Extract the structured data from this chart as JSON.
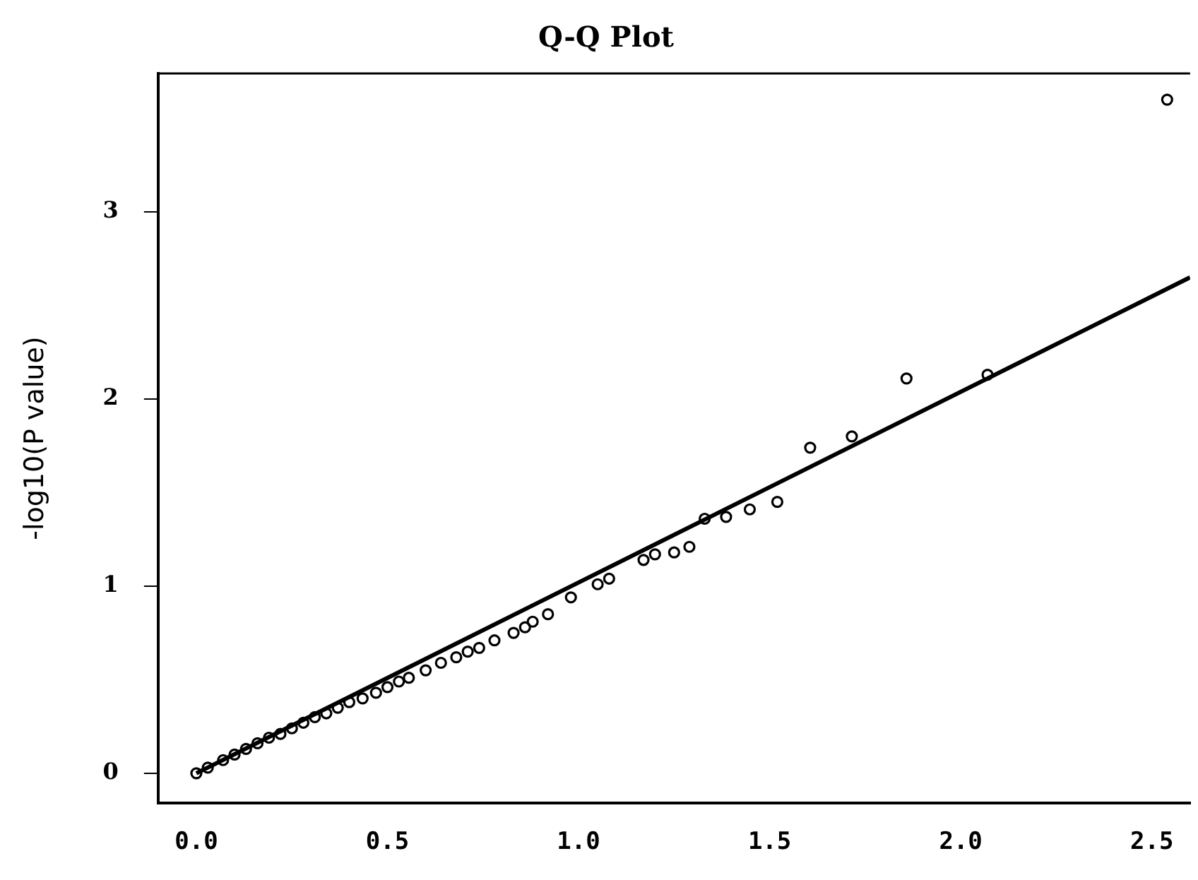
{
  "chart_data": {
    "type": "scatter",
    "title": "Q-Q Plot",
    "ylabel": "-log10(P value)",
    "xlim": [
      -0.1,
      2.6
    ],
    "xticks": [
      {
        "value": 0,
        "label": "0.0"
      },
      0.5,
      {
        "value": 1,
        "label": "1.0"
      },
      1.5,
      {
        "value": 2,
        "label": "2.0"
      },
      2.5
    ],
    "ylim": [
      -0.16,
      3.74
    ],
    "yticks": [
      0,
      1,
      2,
      3
    ],
    "grid": false,
    "legend": false,
    "series": [
      {
        "marker": "circle",
        "color": "#000000",
        "x": [
          0,
          0.03,
          0.07,
          0.1,
          0.13,
          0.16,
          0.19,
          0.22,
          0.25,
          0.28,
          0.31,
          0.34,
          0.37,
          0.4,
          0.435,
          0.47,
          0.5,
          0.53,
          0.556,
          0.6,
          0.64,
          0.68,
          0.71,
          0.74,
          0.78,
          0.83,
          0.86,
          0.88,
          0.92,
          0.98,
          1.05,
          1.08,
          1.17,
          1.2,
          1.25,
          1.29,
          1.33,
          1.386,
          1.448,
          1.52,
          1.606,
          1.715,
          1.858,
          2.07,
          2.54
        ],
        "values": [
          0,
          0.03,
          0.07,
          0.1,
          0.13,
          0.16,
          0.19,
          0.21,
          0.24,
          0.27,
          0.3,
          0.32,
          0.35,
          0.38,
          0.4,
          0.43,
          0.46,
          0.49,
          0.51,
          0.55,
          0.59,
          0.62,
          0.65,
          0.67,
          0.71,
          0.75,
          0.78,
          0.81,
          0.85,
          0.94,
          1.01,
          1.04,
          1.14,
          1.17,
          1.18,
          1.21,
          1.36,
          1.37,
          1.41,
          1.45,
          1.74,
          1.8,
          2.11,
          2.13,
          3.6
        ]
      },
      {
        "type": "line",
        "marker": "none",
        "line_style": "solid",
        "color": "#000000",
        "x": [
          0,
          2.6
        ],
        "values": [
          0,
          2.65
        ]
      }
    ]
  }
}
